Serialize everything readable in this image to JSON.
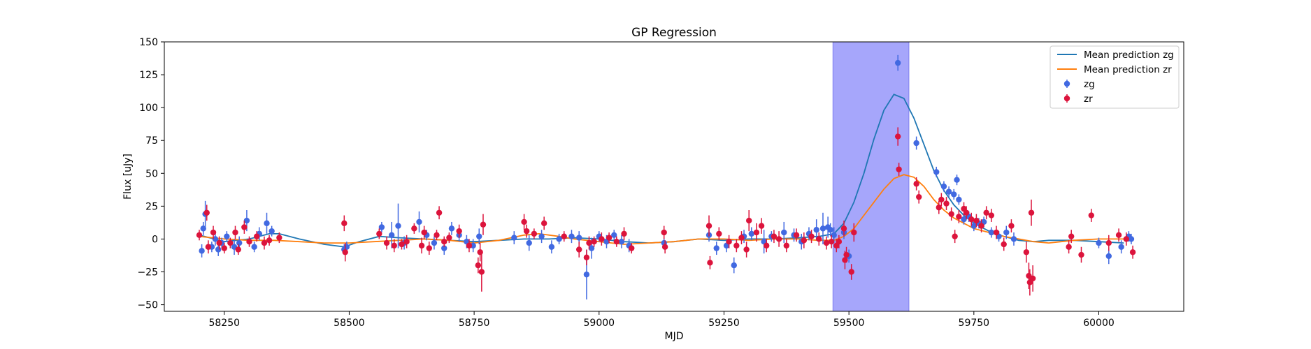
{
  "chart_data": {
    "type": "scatter",
    "title": "GP Regression",
    "xlabel": "MJD",
    "ylabel": "Flux [uJy]",
    "xlim": [
      58130,
      60170
    ],
    "ylim": [
      -55,
      150
    ],
    "xticks": [
      58250,
      58500,
      58750,
      59000,
      59250,
      59500,
      59750,
      60000
    ],
    "yticks": [
      -50,
      -25,
      0,
      25,
      50,
      75,
      100,
      125,
      150
    ],
    "grid": false,
    "legend_position": "top-right",
    "highlight_region": {
      "x0": 59468,
      "x1": 59620,
      "color": "#a6a6fb"
    },
    "legend": [
      {
        "label": "Mean prediction zg",
        "kind": "line",
        "color": "#1f77b4"
      },
      {
        "label": "Mean prediction zr",
        "kind": "line",
        "color": "#ff7f0e"
      },
      {
        "label": "zg",
        "kind": "errorbar",
        "color": "#4169e1"
      },
      {
        "label": "zr",
        "kind": "errorbar",
        "color": "#dc143c"
      }
    ],
    "series": [
      {
        "name": "Mean prediction zg",
        "kind": "line",
        "color": "#1f77b4",
        "x": [
          58200,
          58250,
          58300,
          58340,
          58360,
          58400,
          58450,
          58490,
          58520,
          58560,
          58600,
          58650,
          58700,
          58750,
          58800,
          58850,
          58900,
          58950,
          59000,
          59050,
          59100,
          59150,
          59200,
          59250,
          59300,
          59350,
          59400,
          59440,
          59470,
          59490,
          59510,
          59530,
          59550,
          59570,
          59590,
          59610,
          59630,
          59650,
          59670,
          59690,
          59710,
          59730,
          59750,
          59780,
          59810,
          59840,
          59870,
          59900,
          59950,
          60000,
          60050
        ],
        "y": [
          3,
          -2,
          0,
          4,
          4,
          0,
          -4,
          -6,
          -2,
          2,
          1,
          0,
          -1,
          -2,
          -1,
          0,
          0,
          1,
          0,
          -2,
          -3,
          -2,
          0,
          -1,
          0,
          0,
          1,
          2,
          4,
          12,
          28,
          50,
          76,
          98,
          110,
          107,
          92,
          72,
          52,
          37,
          26,
          18,
          12,
          6,
          2,
          -1,
          -2,
          -1,
          -1,
          -2,
          -3
        ]
      },
      {
        "name": "Mean prediction zr",
        "kind": "line",
        "color": "#ff7f0e",
        "x": [
          58200,
          58250,
          58300,
          58350,
          58400,
          58450,
          58500,
          58550,
          58600,
          58650,
          58700,
          58750,
          58800,
          58850,
          58880,
          58920,
          58950,
          59000,
          59050,
          59100,
          59150,
          59200,
          59250,
          59300,
          59350,
          59400,
          59440,
          59470,
          59490,
          59510,
          59530,
          59550,
          59570,
          59590,
          59610,
          59630,
          59650,
          59670,
          59690,
          59710,
          59730,
          59750,
          59780,
          59810,
          59840,
          59870,
          59900,
          59950,
          60000,
          60050
        ],
        "y": [
          2,
          0,
          -1,
          -1,
          -2,
          -3,
          -3,
          -2,
          -1,
          0,
          -1,
          -3,
          -1,
          3,
          4,
          2,
          0,
          -2,
          -4,
          -3,
          -2,
          0,
          0,
          -1,
          0,
          0,
          -1,
          -1,
          2,
          8,
          18,
          28,
          38,
          46,
          49,
          47,
          40,
          30,
          22,
          16,
          12,
          8,
          5,
          2,
          0,
          -2,
          -3,
          -1,
          0,
          0
        ]
      },
      {
        "name": "zg",
        "kind": "errorbar",
        "color": "#4169e1",
        "x": [
          58205,
          58208,
          58212,
          58225,
          58232,
          58238,
          58245,
          58255,
          58270,
          58280,
          58295,
          58310,
          58320,
          58335,
          58345,
          58490,
          58495,
          58565,
          58585,
          58598,
          58610,
          58640,
          58655,
          58670,
          58690,
          58705,
          58720,
          58735,
          58748,
          58760,
          58830,
          58860,
          58885,
          58905,
          58920,
          58945,
          58960,
          58975,
          58985,
          59000,
          59015,
          59030,
          59045,
          59060,
          59130,
          59220,
          59235,
          59255,
          59270,
          59290,
          59305,
          59330,
          59345,
          59370,
          59390,
          59405,
          59420,
          59435,
          59448,
          59458,
          59463,
          59470,
          59490,
          59500,
          59598,
          59635,
          59675,
          59690,
          59700,
          59710,
          59716,
          59720,
          59730,
          59740,
          59750,
          59760,
          59770,
          59785,
          59800,
          59815,
          59830,
          60000,
          60020,
          60045,
          60060,
          60065
        ],
        "y": [
          -9,
          8,
          19,
          -6,
          0,
          -8,
          -3,
          2,
          -6,
          -3,
          14,
          -6,
          4,
          12,
          6,
          -8,
          -6,
          9,
          3,
          10,
          -3,
          13,
          3,
          -3,
          -7,
          8,
          3,
          -2,
          -5,
          2,
          1,
          -3,
          2,
          -6,
          0,
          2,
          1,
          -27,
          -7,
          2,
          -2,
          3,
          -2,
          -5,
          -3,
          3,
          -7,
          -5,
          -20,
          2,
          4,
          -2,
          2,
          5,
          3,
          -2,
          4,
          7,
          8,
          9,
          7,
          3,
          5,
          -13,
          134,
          73,
          51,
          40,
          36,
          34,
          45,
          30,
          15,
          17,
          10,
          12,
          13,
          5,
          2,
          5,
          0,
          -3,
          -13,
          -6,
          2,
          0
        ],
        "yerr": [
          5,
          5,
          10,
          4,
          5,
          5,
          4,
          4,
          6,
          5,
          8,
          4,
          5,
          8,
          4,
          4,
          4,
          4,
          10,
          17,
          5,
          8,
          4,
          5,
          5,
          5,
          5,
          5,
          5,
          6,
          5,
          6,
          5,
          5,
          4,
          5,
          5,
          19,
          8,
          4,
          5,
          4,
          5,
          5,
          4,
          5,
          5,
          5,
          6,
          5,
          5,
          9,
          4,
          8,
          5,
          6,
          5,
          8,
          12,
          8,
          5,
          6,
          5,
          5,
          6,
          5,
          4,
          4,
          4,
          4,
          4,
          4,
          4,
          4,
          4,
          4,
          4,
          4,
          4,
          5,
          5,
          4,
          6,
          5,
          4,
          4
        ]
      },
      {
        "name": "zr",
        "kind": "errorbar",
        "color": "#dc143c",
        "x": [
          58200,
          58215,
          58218,
          58228,
          58240,
          58250,
          58262,
          58272,
          58278,
          58290,
          58300,
          58315,
          58330,
          58340,
          58360,
          58490,
          58492,
          58560,
          58575,
          58590,
          58605,
          58615,
          58630,
          58645,
          58650,
          58660,
          58675,
          58680,
          58690,
          58700,
          58720,
          58740,
          58758,
          58762,
          58765,
          58768,
          58850,
          58855,
          58870,
          58890,
          58930,
          58960,
          58975,
          58980,
          58990,
          59005,
          59020,
          59035,
          59050,
          59065,
          59130,
          59132,
          59220,
          59222,
          59240,
          59260,
          59275,
          59285,
          59295,
          59300,
          59315,
          59325,
          59335,
          59350,
          59360,
          59375,
          59395,
          59410,
          59425,
          59440,
          59455,
          59465,
          59475,
          59480,
          59490,
          59492,
          59495,
          59505,
          59510,
          59598,
          59600,
          59635,
          59640,
          59680,
          59685,
          59695,
          59705,
          59712,
          59720,
          59730,
          59735,
          59745,
          59755,
          59765,
          59775,
          59785,
          59795,
          59810,
          59825,
          59855,
          59860,
          59862,
          59865,
          59868,
          59940,
          59945,
          59965,
          59985,
          60020,
          60040,
          60055,
          60068
        ],
        "y": [
          3,
          20,
          -6,
          5,
          -3,
          -7,
          -3,
          5,
          -8,
          9,
          -2,
          2,
          -3,
          -1,
          1,
          12,
          -10,
          4,
          -3,
          -5,
          -4,
          -2,
          8,
          -5,
          5,
          -7,
          3,
          20,
          -2,
          1,
          6,
          -5,
          -20,
          -10,
          -25,
          11,
          13,
          6,
          4,
          12,
          2,
          -8,
          -14,
          -3,
          -2,
          0,
          1,
          -2,
          4,
          -7,
          5,
          -6,
          10,
          -18,
          4,
          -2,
          -5,
          1,
          -8,
          14,
          5,
          10,
          -5,
          2,
          0,
          -5,
          3,
          -1,
          2,
          0,
          -3,
          -2,
          -5,
          -2,
          8,
          -16,
          -12,
          -25,
          5,
          78,
          53,
          42,
          32,
          24,
          30,
          27,
          19,
          2,
          17,
          23,
          20,
          15,
          14,
          10,
          20,
          18,
          5,
          -4,
          10,
          -10,
          -28,
          -33,
          20,
          -30,
          -6,
          2,
          -12,
          18,
          -3,
          3,
          0,
          -10
        ],
        "yerr": [
          4,
          6,
          5,
          5,
          5,
          4,
          4,
          5,
          4,
          5,
          4,
          4,
          5,
          4,
          4,
          6,
          7,
          4,
          5,
          5,
          4,
          5,
          4,
          6,
          5,
          5,
          4,
          5,
          4,
          4,
          5,
          5,
          6,
          7,
          15,
          8,
          6,
          5,
          4,
          5,
          4,
          6,
          6,
          5,
          4,
          5,
          4,
          4,
          5,
          4,
          5,
          5,
          8,
          5,
          5,
          5,
          5,
          5,
          6,
          8,
          7,
          6,
          5,
          5,
          6,
          5,
          5,
          6,
          5,
          5,
          5,
          5,
          5,
          5,
          6,
          7,
          6,
          6,
          7,
          7,
          5,
          5,
          5,
          5,
          5,
          5,
          5,
          5,
          5,
          5,
          5,
          5,
          5,
          5,
          5,
          5,
          5,
          5,
          5,
          8,
          10,
          10,
          10,
          10,
          5,
          5,
          6,
          5,
          6,
          5,
          5,
          5
        ]
      }
    ]
  }
}
